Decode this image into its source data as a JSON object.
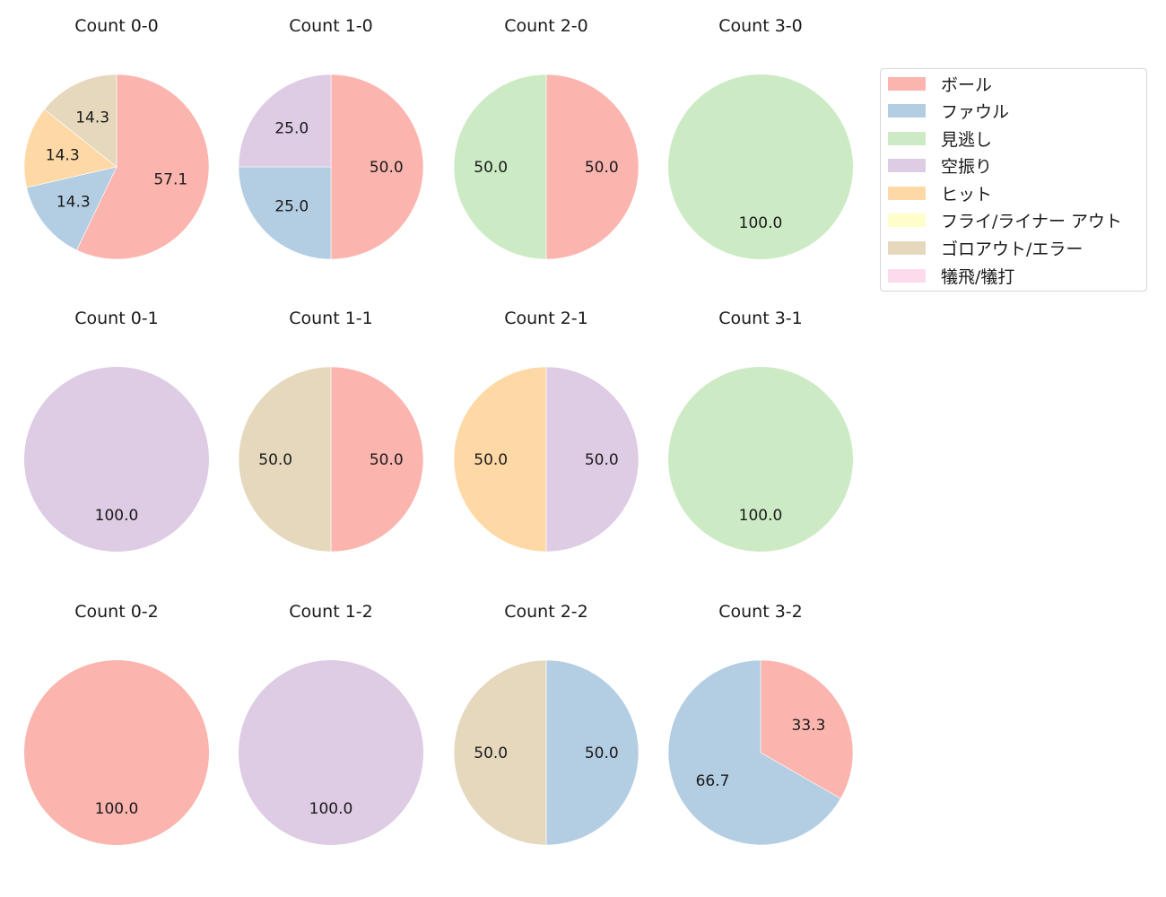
{
  "chart_data": {
    "type": "pie",
    "layout": {
      "rows": 3,
      "cols": 4,
      "legend_position": "upper right"
    },
    "categories": [
      "ボール",
      "ファウル",
      "見逃し",
      "空振り",
      "ヒット",
      "フライ/ライナー アウト",
      "ゴロアウト/エラー",
      "犠飛/犠打"
    ],
    "colors": [
      "#fbb4ae",
      "#b3cde3",
      "#ccebc5",
      "#decbe4",
      "#fed9a6",
      "#ffffcc",
      "#e5d8bd",
      "#fddaec"
    ],
    "charts": [
      {
        "title": "Count 0-0",
        "row": 0,
        "col": 0,
        "slices": [
          {
            "category": "ボール",
            "value": 57.1
          },
          {
            "category": "ファウル",
            "value": 14.3
          },
          {
            "category": "ヒット",
            "value": 14.3
          },
          {
            "category": "ゴロアウト/エラー",
            "value": 14.3
          }
        ]
      },
      {
        "title": "Count 1-0",
        "row": 0,
        "col": 1,
        "slices": [
          {
            "category": "ボール",
            "value": 50.0
          },
          {
            "category": "ファウル",
            "value": 25.0
          },
          {
            "category": "空振り",
            "value": 25.0
          }
        ]
      },
      {
        "title": "Count 2-0",
        "row": 0,
        "col": 2,
        "slices": [
          {
            "category": "ボール",
            "value": 50.0
          },
          {
            "category": "見逃し",
            "value": 50.0
          }
        ]
      },
      {
        "title": "Count 3-0",
        "row": 0,
        "col": 3,
        "slices": [
          {
            "category": "見逃し",
            "value": 100.0
          }
        ]
      },
      {
        "title": "Count 0-1",
        "row": 1,
        "col": 0,
        "slices": [
          {
            "category": "空振り",
            "value": 100.0
          }
        ]
      },
      {
        "title": "Count 1-1",
        "row": 1,
        "col": 1,
        "slices": [
          {
            "category": "ボール",
            "value": 50.0
          },
          {
            "category": "ゴロアウト/エラー",
            "value": 50.0
          }
        ]
      },
      {
        "title": "Count 2-1",
        "row": 1,
        "col": 2,
        "slices": [
          {
            "category": "空振り",
            "value": 50.0
          },
          {
            "category": "ヒット",
            "value": 50.0
          }
        ]
      },
      {
        "title": "Count 3-1",
        "row": 1,
        "col": 3,
        "slices": [
          {
            "category": "見逃し",
            "value": 100.0
          }
        ]
      },
      {
        "title": "Count 0-2",
        "row": 2,
        "col": 0,
        "slices": [
          {
            "category": "ボール",
            "value": 100.0
          }
        ]
      },
      {
        "title": "Count 1-2",
        "row": 2,
        "col": 1,
        "slices": [
          {
            "category": "空振り",
            "value": 100.0
          }
        ]
      },
      {
        "title": "Count 2-2",
        "row": 2,
        "col": 2,
        "slices": [
          {
            "category": "ファウル",
            "value": 50.0
          },
          {
            "category": "ゴロアウト/エラー",
            "value": 50.0
          }
        ]
      },
      {
        "title": "Count 3-2",
        "row": 2,
        "col": 3,
        "slices": [
          {
            "category": "ボール",
            "value": 33.3
          },
          {
            "category": "ファウル",
            "value": 66.7
          }
        ]
      }
    ]
  },
  "legend": {
    "items": [
      {
        "label": "ボール",
        "color": "#fbb4ae"
      },
      {
        "label": "ファウル",
        "color": "#b3cde3"
      },
      {
        "label": "見逃し",
        "color": "#ccebc5"
      },
      {
        "label": "空振り",
        "color": "#decbe4"
      },
      {
        "label": "ヒット",
        "color": "#fed9a6"
      },
      {
        "label": "フライ/ライナー アウト",
        "color": "#ffffcc"
      },
      {
        "label": "ゴロアウト/エラー",
        "color": "#e5d8bd"
      },
      {
        "label": "犠飛/犠打",
        "color": "#fddaec"
      }
    ]
  }
}
